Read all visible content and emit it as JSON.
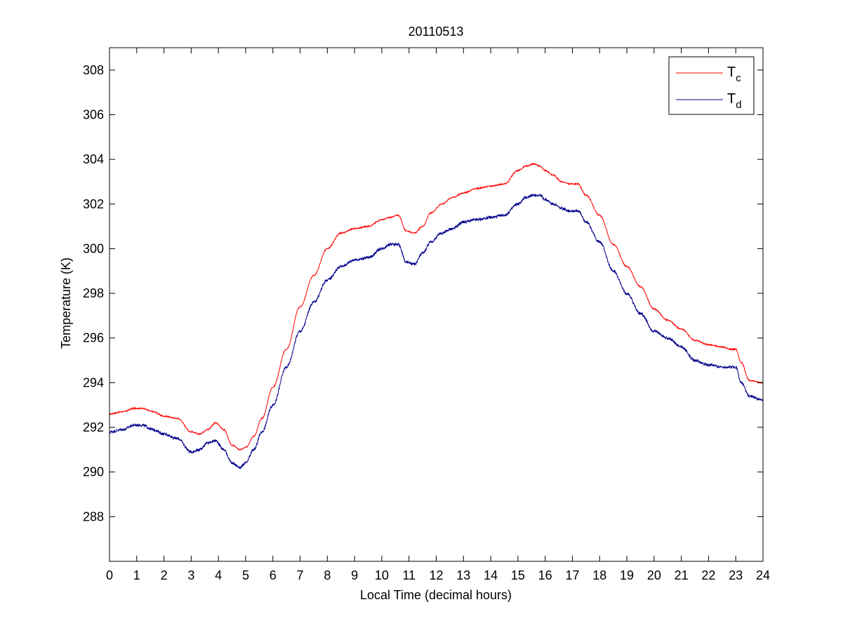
{
  "chart_data": {
    "type": "line",
    "title": "20110513",
    "xlabel": "Local Time (decimal hours)",
    "ylabel": "Temperature (K)",
    "xlim": [
      0,
      24
    ],
    "ylim": [
      286,
      309
    ],
    "xticks": [
      0,
      1,
      2,
      3,
      4,
      5,
      6,
      7,
      8,
      9,
      10,
      11,
      12,
      13,
      14,
      15,
      16,
      17,
      18,
      19,
      20,
      21,
      22,
      23,
      24
    ],
    "yticks": [
      288,
      290,
      292,
      294,
      296,
      298,
      300,
      302,
      304,
      306,
      308
    ],
    "grid": false,
    "legend_position": "top-right",
    "series": [
      {
        "name": "T",
        "name_subscript": "c",
        "color": "#ff0000",
        "noise": 0.05,
        "x": [
          0,
          0.5,
          0.9,
          1.2,
          1.6,
          2,
          2.5,
          3,
          3.3,
          3.6,
          3.9,
          4.2,
          4.5,
          4.8,
          5,
          5.3,
          5.6,
          6,
          6.5,
          7,
          7.5,
          8,
          8.5,
          9,
          9.5,
          10,
          10.3,
          10.6,
          10.9,
          11.2,
          11.5,
          11.8,
          12.2,
          12.6,
          13,
          13.5,
          14,
          14.5,
          15,
          15.3,
          15.6,
          15.8,
          16,
          16.3,
          16.6,
          16.9,
          17.2,
          17.5,
          18,
          18.5,
          19,
          19.5,
          20,
          20.5,
          21,
          21.5,
          22,
          22.5,
          22.8,
          23,
          23.2,
          23.5,
          24
        ],
        "y": [
          292.6,
          292.7,
          292.85,
          292.85,
          292.7,
          292.5,
          292.4,
          291.8,
          291.7,
          291.9,
          292.2,
          291.9,
          291.2,
          291.0,
          291.1,
          291.6,
          292.4,
          293.8,
          295.5,
          297.4,
          298.8,
          300.0,
          300.7,
          300.9,
          301.0,
          301.3,
          301.4,
          301.5,
          300.8,
          300.7,
          301.0,
          301.6,
          302.0,
          302.3,
          302.5,
          302.7,
          302.8,
          302.9,
          303.5,
          303.7,
          303.8,
          303.7,
          303.5,
          303.3,
          303.0,
          302.9,
          302.9,
          302.4,
          301.5,
          300.2,
          299.2,
          298.3,
          297.3,
          296.8,
          296.4,
          295.9,
          295.7,
          295.6,
          295.5,
          295.5,
          294.9,
          294.1,
          294.0
        ]
      },
      {
        "name": "T",
        "name_subscript": "d",
        "color": "#00008b",
        "noise": 0.12,
        "x": [
          0,
          0.5,
          0.9,
          1.2,
          1.6,
          2,
          2.5,
          3,
          3.3,
          3.6,
          3.9,
          4.2,
          4.5,
          4.8,
          5,
          5.3,
          5.6,
          6,
          6.5,
          7,
          7.5,
          8,
          8.5,
          9,
          9.5,
          10,
          10.3,
          10.6,
          10.9,
          11.2,
          11.5,
          11.8,
          12.2,
          12.6,
          13,
          13.5,
          14,
          14.5,
          15,
          15.3,
          15.6,
          15.8,
          16,
          16.3,
          16.6,
          16.9,
          17.2,
          17.5,
          18,
          18.5,
          19,
          19.5,
          20,
          20.5,
          21,
          21.5,
          22,
          22.5,
          22.8,
          23,
          23.2,
          23.5,
          24
        ],
        "y": [
          291.8,
          291.9,
          292.1,
          292.1,
          291.9,
          291.7,
          291.5,
          290.9,
          291.0,
          291.3,
          291.4,
          291.0,
          290.4,
          290.2,
          290.4,
          291.0,
          291.8,
          293.0,
          294.7,
          296.3,
          297.6,
          298.6,
          299.2,
          299.5,
          299.6,
          300.0,
          300.2,
          300.2,
          299.4,
          299.3,
          299.8,
          300.3,
          300.7,
          300.9,
          301.2,
          301.3,
          301.4,
          301.5,
          302.0,
          302.3,
          302.4,
          302.4,
          302.2,
          302.0,
          301.8,
          301.7,
          301.7,
          301.2,
          300.3,
          299.0,
          298.0,
          297.1,
          296.3,
          296.0,
          295.6,
          295.0,
          294.8,
          294.7,
          294.7,
          294.7,
          294.0,
          293.4,
          293.2
        ]
      }
    ]
  }
}
